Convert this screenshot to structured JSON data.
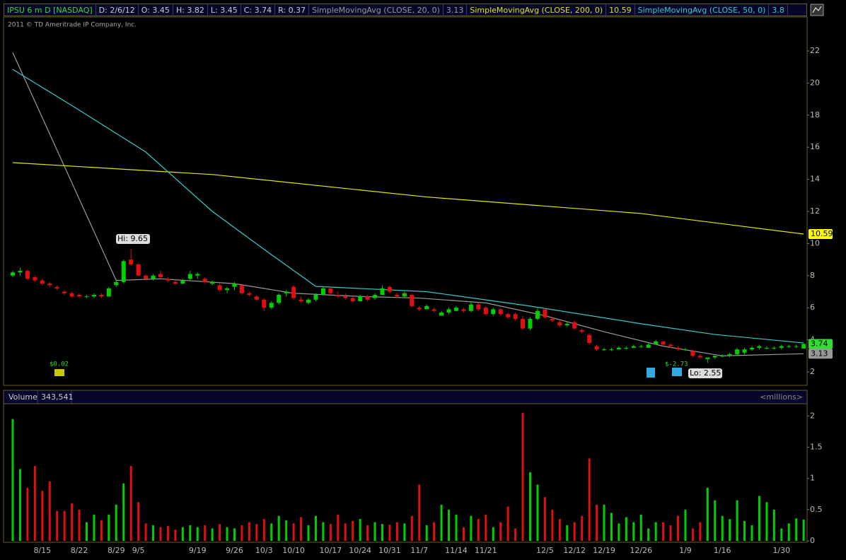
{
  "header": {
    "items": [
      "IPSU 6 m D [NASDAQ]",
      "D: 2/6/12",
      "O: 3.45",
      "H: 3.82",
      "L: 3.45",
      "C: 3.74",
      "R: 0.37"
    ],
    "copyright": "2011 © TD Ameritrade IP Company, Inc."
  },
  "chart_data": [
    {
      "type": "candlestick",
      "categories": [
        null,
        null,
        null,
        null,
        "8/15",
        null,
        null,
        null,
        null,
        "8/22",
        null,
        null,
        null,
        null,
        "8/29",
        null,
        null,
        "9/5",
        null,
        null,
        null,
        null,
        null,
        null,
        null,
        "9/19",
        null,
        null,
        null,
        null,
        "9/26",
        null,
        null,
        null,
        "10/3",
        null,
        null,
        null,
        "10/10",
        null,
        null,
        null,
        null,
        "10/17",
        null,
        null,
        null,
        "10/24",
        null,
        null,
        null,
        "10/31",
        null,
        null,
        null,
        "11/7",
        null,
        null,
        null,
        null,
        "11/14",
        null,
        null,
        null,
        "11/21",
        null,
        null,
        null,
        null,
        null,
        null,
        null,
        "12/5",
        null,
        null,
        null,
        "12/12",
        null,
        null,
        null,
        "12/19",
        null,
        null,
        null,
        null,
        "12/26",
        null,
        null,
        null,
        null,
        null,
        "1/9",
        null,
        null,
        null,
        null,
        "1/16",
        null,
        null,
        null,
        null,
        null,
        null,
        null,
        "1/30",
        null,
        null,
        null
      ],
      "ohlc": [
        [
          8.0,
          8.3,
          7.9,
          8.2
        ],
        [
          8.2,
          8.5,
          8.0,
          8.3
        ],
        [
          8.3,
          8.4,
          7.7,
          7.8
        ],
        [
          7.9,
          8.0,
          7.6,
          7.7
        ],
        [
          7.7,
          7.8,
          7.4,
          7.5
        ],
        [
          7.5,
          7.6,
          7.3,
          7.4
        ],
        [
          7.3,
          7.4,
          7.1,
          7.2
        ],
        [
          7.0,
          7.1,
          6.8,
          6.9
        ],
        [
          6.9,
          7.0,
          6.6,
          6.7
        ],
        [
          6.8,
          6.9,
          6.6,
          6.7
        ],
        [
          6.7,
          6.8,
          6.6,
          6.7
        ],
        [
          6.7,
          6.9,
          6.6,
          6.8
        ],
        [
          6.8,
          6.9,
          6.6,
          6.7
        ],
        [
          6.7,
          7.3,
          6.7,
          7.2
        ],
        [
          7.4,
          7.8,
          7.3,
          7.6
        ],
        [
          7.6,
          9.0,
          7.5,
          8.9
        ],
        [
          9.0,
          9.65,
          8.6,
          8.7
        ],
        [
          8.7,
          8.8,
          8.0,
          8.0
        ],
        [
          8.0,
          8.1,
          7.7,
          7.8
        ],
        [
          7.8,
          8.1,
          7.7,
          8.0
        ],
        [
          8.1,
          8.3,
          7.8,
          7.9
        ],
        [
          7.8,
          7.9,
          7.6,
          7.7
        ],
        [
          7.6,
          7.8,
          7.4,
          7.5
        ],
        [
          7.5,
          7.8,
          7.5,
          7.7
        ],
        [
          7.8,
          8.3,
          7.7,
          8.1
        ],
        [
          8.0,
          8.2,
          7.8,
          8.1
        ],
        [
          7.8,
          7.9,
          7.5,
          7.6
        ],
        [
          7.5,
          7.7,
          7.4,
          7.6
        ],
        [
          7.4,
          7.5,
          7.0,
          7.1
        ],
        [
          7.1,
          7.3,
          6.9,
          7.2
        ],
        [
          7.3,
          7.6,
          7.1,
          7.5
        ],
        [
          7.4,
          7.5,
          6.8,
          6.9
        ],
        [
          6.9,
          7.0,
          6.7,
          6.8
        ],
        [
          6.7,
          6.8,
          6.4,
          6.5
        ],
        [
          6.5,
          6.6,
          5.8,
          6.0
        ],
        [
          6.0,
          6.4,
          5.9,
          6.3
        ],
        [
          6.3,
          6.9,
          6.2,
          6.8
        ],
        [
          6.9,
          7.1,
          6.7,
          7.0
        ],
        [
          7.3,
          7.4,
          6.5,
          6.6
        ],
        [
          6.5,
          6.7,
          6.3,
          6.4
        ],
        [
          6.3,
          6.6,
          6.2,
          6.5
        ],
        [
          6.5,
          6.9,
          6.4,
          6.8
        ],
        [
          6.8,
          7.3,
          6.8,
          7.2
        ],
        [
          7.2,
          7.3,
          6.8,
          6.9
        ],
        [
          6.8,
          7.0,
          6.6,
          6.7
        ],
        [
          6.7,
          6.9,
          6.5,
          6.6
        ],
        [
          6.6,
          6.7,
          6.3,
          6.4
        ],
        [
          6.4,
          6.8,
          6.4,
          6.7
        ],
        [
          6.7,
          6.8,
          6.4,
          6.5
        ],
        [
          6.6,
          6.9,
          6.5,
          6.8
        ],
        [
          6.8,
          7.4,
          6.8,
          7.2
        ],
        [
          7.3,
          7.4,
          6.9,
          7.0
        ],
        [
          6.8,
          6.9,
          6.6,
          6.7
        ],
        [
          6.7,
          7.0,
          6.6,
          6.9
        ],
        [
          6.8,
          6.9,
          6.0,
          6.1
        ],
        [
          6.0,
          6.1,
          5.8,
          5.9
        ],
        [
          5.9,
          6.2,
          5.9,
          6.1
        ],
        [
          5.9,
          6.0,
          5.7,
          5.8
        ],
        [
          5.5,
          5.8,
          5.5,
          5.7
        ],
        [
          5.7,
          6.0,
          5.6,
          5.9
        ],
        [
          5.8,
          6.1,
          5.8,
          6.0
        ],
        [
          5.9,
          6.0,
          5.7,
          5.8
        ],
        [
          5.8,
          6.4,
          5.7,
          6.2
        ],
        [
          6.2,
          6.3,
          5.8,
          5.9
        ],
        [
          6.0,
          6.1,
          5.5,
          5.6
        ],
        [
          5.6,
          6.0,
          5.5,
          5.9
        ],
        [
          5.9,
          6.0,
          5.5,
          5.6
        ],
        [
          5.6,
          5.7,
          5.3,
          5.4
        ],
        [
          5.6,
          5.7,
          5.2,
          5.3
        ],
        [
          5.3,
          5.5,
          4.6,
          4.7
        ],
        [
          4.7,
          5.4,
          4.6,
          5.3
        ],
        [
          5.3,
          6.0,
          5.2,
          5.8
        ],
        [
          5.9,
          6.0,
          5.3,
          5.4
        ],
        [
          5.3,
          5.4,
          5.1,
          5.2
        ],
        [
          5.1,
          5.2,
          4.8,
          4.9
        ],
        [
          4.9,
          5.1,
          4.8,
          5.0
        ],
        [
          5.1,
          5.2,
          4.6,
          4.7
        ],
        [
          4.6,
          4.7,
          4.4,
          4.5
        ],
        [
          4.3,
          4.4,
          3.7,
          3.8
        ],
        [
          3.6,
          3.7,
          3.3,
          3.4
        ],
        [
          3.4,
          3.5,
          3.3,
          3.4
        ],
        [
          3.4,
          3.5,
          3.3,
          3.4
        ],
        [
          3.4,
          3.6,
          3.4,
          3.5
        ],
        [
          3.5,
          3.6,
          3.4,
          3.5
        ],
        [
          3.5,
          3.7,
          3.5,
          3.6
        ],
        [
          3.6,
          3.7,
          3.5,
          3.6
        ],
        [
          3.5,
          3.8,
          3.5,
          3.7
        ],
        [
          3.7,
          4.0,
          3.7,
          3.9
        ],
        [
          3.9,
          3.9,
          3.6,
          3.7
        ],
        [
          3.7,
          3.8,
          3.5,
          3.6
        ],
        [
          3.5,
          3.6,
          3.3,
          3.4
        ],
        [
          3.4,
          3.5,
          3.3,
          3.4
        ],
        [
          3.3,
          3.4,
          2.9,
          3.0
        ],
        [
          3.0,
          3.1,
          2.8,
          2.9
        ],
        [
          2.8,
          2.9,
          2.55,
          2.9
        ],
        [
          2.9,
          3.0,
          2.8,
          3.0
        ],
        [
          3.0,
          3.1,
          2.9,
          3.0
        ],
        [
          3.0,
          3.2,
          2.9,
          3.1
        ],
        [
          3.1,
          3.5,
          3.0,
          3.4
        ],
        [
          3.2,
          3.5,
          3.1,
          3.4
        ],
        [
          3.4,
          3.6,
          3.3,
          3.5
        ],
        [
          3.5,
          3.7,
          3.4,
          3.6
        ],
        [
          3.5,
          3.6,
          3.4,
          3.5
        ],
        [
          3.5,
          3.6,
          3.4,
          3.5
        ],
        [
          3.5,
          3.7,
          3.4,
          3.6
        ],
        [
          3.6,
          3.7,
          3.5,
          3.6
        ],
        [
          3.6,
          3.7,
          3.5,
          3.6
        ],
        [
          3.45,
          3.82,
          3.45,
          3.74
        ]
      ],
      "up_color": "#00d000",
      "down_color": "#e01010",
      "series": [
        {
          "name": "SimpleMovingAvg (CLOSE, 20, 0)",
          "color": "#9a9a9a",
          "x": [
            0,
            14,
            20,
            30,
            38,
            47,
            55,
            64,
            72,
            80,
            88,
            96,
            107
          ],
          "values": [
            21.9,
            7.7,
            7.8,
            7.5,
            6.9,
            6.7,
            6.6,
            6.3,
            5.5,
            4.5,
            3.6,
            3.0,
            3.13
          ]
        },
        {
          "name": "SimpleMovingAvg (CLOSE, 200, 0)",
          "color": "#e6e600",
          "x": [
            0,
            27,
            56,
            85,
            107
          ],
          "values": [
            15.04,
            14.3,
            12.9,
            11.87,
            10.59
          ]
        },
        {
          "name": "SimpleMovingAvg (CLOSE, 50, 0)",
          "color": "#33cccc",
          "x": [
            0,
            8,
            18,
            27,
            35,
            41,
            56,
            70,
            85,
            95,
            107
          ],
          "values": [
            20.85,
            18.6,
            15.7,
            12.0,
            9.3,
            7.33,
            7.0,
            6.1,
            5.0,
            4.33,
            3.8
          ]
        }
      ],
      "annotations": [
        "Hi: 9.65",
        "Lo: 2.55",
        "$0.02",
        "$-2.73"
      ],
      "ylim": [
        1.16,
        24.03
      ],
      "yticks": [
        2,
        4,
        6,
        8,
        10,
        12,
        14,
        16,
        18,
        20,
        22
      ]
    },
    {
      "type": "bar",
      "title": "Volume",
      "subtitle": "343,541",
      "unit_label": "<millions>",
      "values": [
        1.95,
        1.15,
        0.85,
        1.2,
        0.8,
        0.95,
        0.48,
        0.48,
        0.6,
        0.5,
        0.3,
        0.42,
        0.33,
        0.42,
        0.58,
        0.92,
        1.2,
        0.62,
        0.28,
        0.25,
        0.22,
        0.24,
        0.18,
        0.22,
        0.25,
        0.22,
        0.25,
        0.2,
        0.27,
        0.22,
        0.2,
        0.25,
        0.3,
        0.27,
        0.35,
        0.28,
        0.4,
        0.33,
        0.28,
        0.38,
        0.25,
        0.4,
        0.3,
        0.27,
        0.42,
        0.28,
        0.32,
        0.35,
        0.25,
        0.3,
        0.27,
        0.26,
        0.3,
        0.28,
        0.4,
        0.9,
        0.25,
        0.3,
        0.58,
        0.5,
        0.42,
        0.22,
        0.4,
        0.35,
        0.42,
        0.22,
        0.3,
        0.55,
        0.2,
        2.05,
        1.1,
        0.9,
        0.7,
        0.5,
        0.35,
        0.25,
        0.3,
        0.4,
        1.32,
        0.58,
        0.58,
        0.45,
        0.28,
        0.38,
        0.3,
        0.42,
        0.2,
        0.3,
        0.3,
        0.25,
        0.4,
        0.5,
        0.2,
        0.3,
        0.85,
        0.65,
        0.4,
        0.35,
        0.65,
        0.32,
        0.25,
        0.72,
        0.62,
        0.5,
        0.2,
        0.28,
        0.36,
        0.34
      ],
      "ylim": [
        0,
        2.15
      ],
      "yticks": [
        0,
        0.5,
        1,
        1.5,
        2
      ]
    }
  ]
}
